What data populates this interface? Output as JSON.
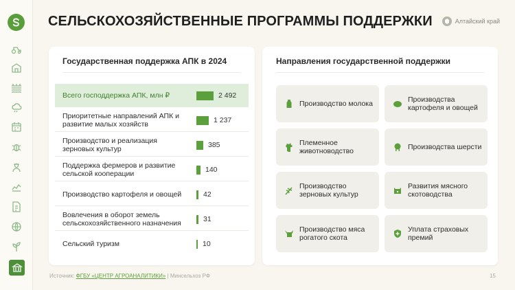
{
  "header": {
    "title": "СЕЛЬСКОХОЗЯЙСТВЕННЫЕ ПРОГРАММЫ ПОДДЕРЖКИ",
    "region": "Алтайский край"
  },
  "left_card": {
    "title": "Государственная поддержка АПК в 2024",
    "rows": [
      {
        "label": "Всего господдержка АПК, млн ₽",
        "value": "2 492",
        "amount": 2492
      },
      {
        "label": "Приоритетные направлений АПК и развитие малых хозяйств",
        "value": "1 237",
        "amount": 1237
      },
      {
        "label": "Производство и реализация зерновых культур",
        "value": "385",
        "amount": 385
      },
      {
        "label": "Поддержка фермеров и развитие сельской кооперации",
        "value": "140",
        "amount": 140
      },
      {
        "label": "Производство картофеля и овощей",
        "value": "42",
        "amount": 42
      },
      {
        "label": "Вовлечения в оборот земель сельскохозяйственного назначения",
        "value": "31",
        "amount": 31
      },
      {
        "label": "Сельский туризм",
        "value": "10",
        "amount": 10
      }
    ]
  },
  "right_card": {
    "title": "Направления государственной поддержки",
    "tiles": [
      {
        "label": "Производство молока",
        "icon": "milk-icon"
      },
      {
        "label": "Производства картофеля и овощей",
        "icon": "potato-icon"
      },
      {
        "label": "Племенное животноводство",
        "icon": "horse-icon"
      },
      {
        "label": "Производства шерсти",
        "icon": "sheep-icon"
      },
      {
        "label": "Производство зерновых культур",
        "icon": "wheat-icon"
      },
      {
        "label": "Развития мясного скотоводства",
        "icon": "pig-icon"
      },
      {
        "label": "Производство мяса рогатого скота",
        "icon": "cow-icon"
      },
      {
        "label": "Уплата страховых премий",
        "icon": "shield-plus-icon"
      }
    ]
  },
  "footer": {
    "source_prefix": "Источник:",
    "source_link": "ФГБУ «ЦЕНТР АГРОАНАЛИТИКИ»",
    "separator": "|",
    "source_suffix": "Минсельхоз РФ",
    "page_number": "15"
  },
  "sidebar": {
    "items": [
      "tractor-icon",
      "barn-icon",
      "field-icon",
      "weather-icon",
      "calendar-icon",
      "pest-icon",
      "farmer-icon",
      "livestock-icon",
      "document-icon",
      "globe-icon",
      "plant-icon",
      "government-icon"
    ],
    "active": "government-icon"
  },
  "colors": {
    "accent": "#5ba03c",
    "highlight_bg": "#dfeedb",
    "page_bg": "#f8f6ee",
    "tile_bg": "#f1efe9"
  }
}
